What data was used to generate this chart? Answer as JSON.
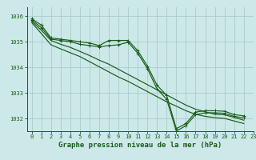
{
  "title": "Graphe pression niveau de la mer (hPa)",
  "bg_color": "#cce8e8",
  "grid_color": "#aacccc",
  "line_color": "#1a5c1a",
  "xlim": [
    -0.5,
    23
  ],
  "ylim": [
    1031.5,
    1036.35
  ],
  "yticks": [
    1032,
    1033,
    1034,
    1035,
    1036
  ],
  "xticks": [
    0,
    1,
    2,
    3,
    4,
    5,
    6,
    7,
    8,
    9,
    10,
    11,
    12,
    13,
    14,
    15,
    16,
    17,
    18,
    19,
    20,
    21,
    22,
    23
  ],
  "series1": [
    1035.9,
    1035.65,
    1035.15,
    1035.1,
    1035.05,
    1035.0,
    1034.95,
    1034.85,
    1035.05,
    1035.05,
    1035.05,
    1034.65,
    1034.05,
    1033.3,
    1032.9,
    1031.6,
    1031.8,
    1032.25,
    1032.3,
    1032.3,
    1032.28,
    1032.15,
    1032.1
  ],
  "series2": [
    1035.85,
    1035.55,
    1035.1,
    1035.05,
    1035.0,
    1034.9,
    1034.85,
    1034.8,
    1034.85,
    1034.88,
    1034.98,
    1034.55,
    1033.95,
    1033.15,
    1032.75,
    1031.5,
    1031.72,
    1032.15,
    1032.22,
    1032.22,
    1032.2,
    1032.08,
    1032.02
  ],
  "series3": [
    1035.8,
    1035.45,
    1035.05,
    1034.9,
    1034.78,
    1034.62,
    1034.46,
    1034.28,
    1034.12,
    1033.92,
    1033.72,
    1033.52,
    1033.32,
    1033.12,
    1032.92,
    1032.72,
    1032.52,
    1032.36,
    1032.26,
    1032.16,
    1032.14,
    1032.04,
    1031.93
  ],
  "series4": [
    1035.75,
    1035.32,
    1034.88,
    1034.72,
    1034.57,
    1034.42,
    1034.22,
    1034.02,
    1033.82,
    1033.62,
    1033.45,
    1033.25,
    1033.05,
    1032.85,
    1032.65,
    1032.48,
    1032.3,
    1032.16,
    1032.08,
    1032.03,
    1032.0,
    1031.9,
    1031.8
  ],
  "tick_fontsize": 5,
  "label_fontsize": 6.5
}
